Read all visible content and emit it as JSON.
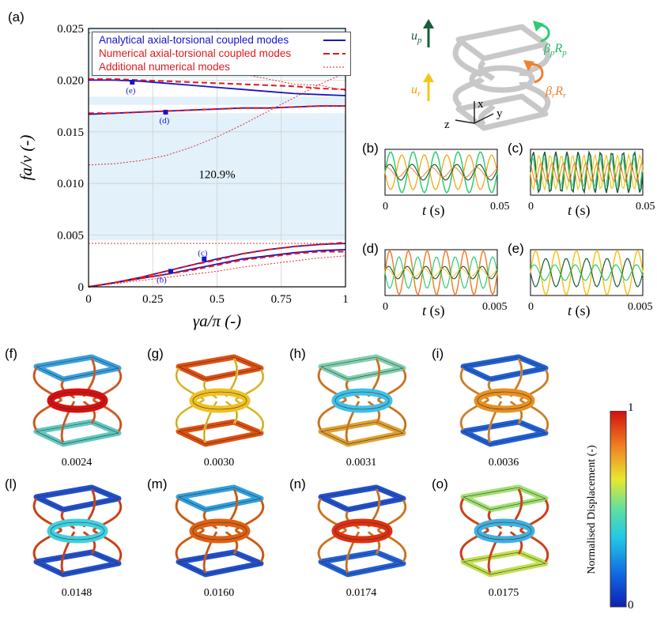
{
  "panel_labels": {
    "a": "(a)",
    "b": "(b)",
    "c": "(c)",
    "d": "(d)",
    "e": "(e)",
    "f": "(f)",
    "g": "(g)",
    "h": "(h)",
    "i": "(i)",
    "l": "(l)",
    "m": "(m)",
    "n": "(n)",
    "o": "(o)"
  },
  "chart_data": {
    "type": "line",
    "xlabel": "γa/π (-)",
    "ylabel": "fa/v (-)",
    "xlim": [
      0,
      1
    ],
    "ylim": [
      0,
      0.025
    ],
    "xticks": [
      "0",
      "0.25",
      "0.5",
      "0.75",
      "1"
    ],
    "yticks": [
      "0",
      "0.005",
      "0.010",
      "0.015",
      "0.020",
      "0.025"
    ],
    "bandgap_label": "120.9%",
    "bandgap_range": [
      0.0045,
      0.0168
    ],
    "legend": [
      {
        "name": "Analytical axial-torsional coupled modes",
        "color": "#1515c8",
        "style": "solid"
      },
      {
        "name": "Numerical axial-torsional coupled modes",
        "color": "#e0191e",
        "style": "dashed"
      },
      {
        "name": "Additional numerical modes",
        "color": "#e0191e",
        "style": "dotted"
      }
    ],
    "x": [
      0,
      0.1,
      0.2,
      0.3,
      0.4,
      0.5,
      0.6,
      0.7,
      0.8,
      0.9,
      1.0
    ],
    "series": [
      {
        "name": "Analytical branch 1",
        "style": "solid",
        "color": "#1515c8",
        "values": [
          0,
          0.0004,
          0.0009,
          0.0015,
          0.0021,
          0.0027,
          0.0032,
          0.0036,
          0.0039,
          0.0041,
          0.0042
        ]
      },
      {
        "name": "Analytical branch 2",
        "style": "solid",
        "color": "#1515c8",
        "values": [
          0,
          0.0004,
          0.0008,
          0.0012,
          0.0017,
          0.0022,
          0.0027,
          0.003,
          0.0033,
          0.0035,
          0.0036
        ]
      },
      {
        "name": "Analytical branch 3",
        "style": "solid",
        "color": "#1515c8",
        "values": [
          0.0167,
          0.0168,
          0.0169,
          0.017,
          0.0171,
          0.0172,
          0.0173,
          0.0173,
          0.0174,
          0.0175,
          0.0175
        ]
      },
      {
        "name": "Analytical branch 4",
        "style": "solid",
        "color": "#1515c8",
        "values": [
          0.02,
          0.02,
          0.0199,
          0.0197,
          0.0195,
          0.0193,
          0.0191,
          0.0189,
          0.0187,
          0.0186,
          0.0185
        ]
      },
      {
        "name": "Numerical branch 1",
        "style": "dashed",
        "color": "#e0191e",
        "values": [
          0,
          0.0004,
          0.0009,
          0.0015,
          0.0021,
          0.0026,
          0.0032,
          0.0036,
          0.0039,
          0.0041,
          0.0043
        ]
      },
      {
        "name": "Numerical branch 2",
        "style": "dashed",
        "color": "#e0191e",
        "values": [
          0,
          0.0004,
          0.0008,
          0.0012,
          0.0016,
          0.0021,
          0.0026,
          0.0029,
          0.0032,
          0.0034,
          0.0034
        ]
      },
      {
        "name": "Numerical branch 3",
        "style": "dashed",
        "color": "#e0191e",
        "values": [
          0.0168,
          0.0168,
          0.0169,
          0.017,
          0.0171,
          0.0172,
          0.0173,
          0.0173,
          0.0174,
          0.0175,
          0.0175
        ]
      },
      {
        "name": "Numerical branch 4",
        "style": "dashed",
        "color": "#e0191e",
        "values": [
          0.0201,
          0.0201,
          0.02,
          0.0199,
          0.0198,
          0.0197,
          0.0196,
          0.0195,
          0.0194,
          0.0192,
          0.0191
        ]
      },
      {
        "name": "Additional mode 1",
        "style": "dotted",
        "color": "#e0191e",
        "values": [
          0,
          0.0003,
          0.0006,
          0.0009,
          0.0012,
          0.0015,
          0.0019,
          0.0022,
          0.0025,
          0.0028,
          0.003
        ]
      },
      {
        "name": "Additional mode 2",
        "style": "dotted",
        "color": "#e0191e",
        "values": [
          0.0042,
          0.0042,
          0.0042,
          0.0042,
          0.0042,
          0.0042,
          0.0042,
          0.0042,
          0.0042,
          0.0042,
          0.0042
        ]
      },
      {
        "name": "Additional mode 3",
        "style": "dotted",
        "color": "#e0191e",
        "values": [
          0.0118,
          0.0119,
          0.0122,
          0.0127,
          0.0135,
          0.0145,
          0.0157,
          0.017,
          0.0183,
          0.0196,
          0.0207
        ]
      },
      {
        "name": "Additional mode 4",
        "style": "dotted",
        "color": "#e0191e",
        "values": [
          0.0246,
          0.024,
          0.0233,
          0.0226,
          0.0219,
          0.0212,
          0.0206,
          0.0201,
          0.0196,
          0.0195,
          0.019
        ]
      }
    ],
    "markers": [
      {
        "label": "(b)",
        "x": 0.32,
        "y": 0.0015
      },
      {
        "label": "(c)",
        "x": 0.45,
        "y": 0.0027
      },
      {
        "label": "(d)",
        "x": 0.3,
        "y": 0.0169
      },
      {
        "label": "(e)",
        "x": 0.17,
        "y": 0.0198
      }
    ]
  },
  "schematic": {
    "u_p": "u",
    "u_p_sub": "p",
    "u_r": "u",
    "u_r_sub": "r",
    "beta_p": "β",
    "beta_p_sub": "p",
    "R_p": "R",
    "R_p_sub": "p",
    "beta_r": "β",
    "beta_r_sub": "r",
    "R_r": "R",
    "R_r_sub": "r",
    "axis_x": "x",
    "axis_y": "y",
    "axis_z": "z"
  },
  "time_plots": [
    {
      "id": "b",
      "xmax_label": "0.05",
      "x0": "0",
      "xlabel_var": "t",
      "xlabel_unit": " (s)"
    },
    {
      "id": "c",
      "xmax_label": "0.05",
      "x0": "0",
      "xlabel_var": "t",
      "xlabel_unit": " (s)"
    },
    {
      "id": "d",
      "xmax_label": "0.005",
      "x0": "0",
      "xlabel_var": "t",
      "xlabel_unit": " (s)"
    },
    {
      "id": "e",
      "xmax_label": "0.005",
      "x0": "0",
      "xlabel_var": "t",
      "xlabel_unit": " (s)"
    }
  ],
  "mode_values": {
    "f": "0.0024",
    "g": "0.0030",
    "h": "0.0031",
    "i": "0.0036",
    "l": "0.0148",
    "m": "0.0160",
    "n": "0.0174",
    "o": "0.0175"
  },
  "colorbar": {
    "label": "Normalised Displacement (-)",
    "max": "1",
    "min": "0"
  },
  "colors": {
    "up": "#1a5c3a",
    "beta_p": "#2ecc71",
    "u_r": "#f5c518",
    "beta_r": "#f08030",
    "band": "#e2f1fa",
    "blue": "#1515c8",
    "red": "#e0191e"
  }
}
